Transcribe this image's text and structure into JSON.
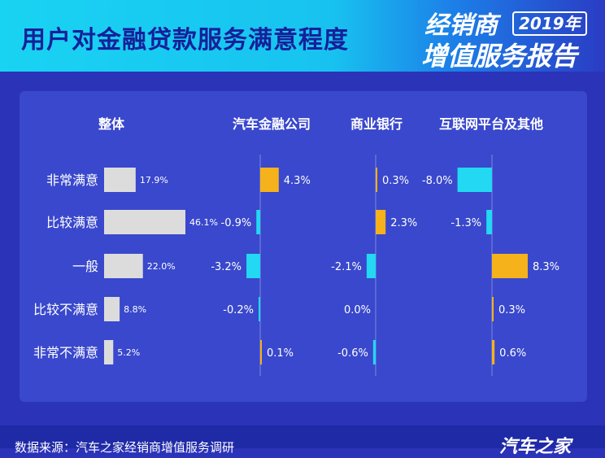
{
  "header": {
    "title": "用户对金融贷款服务满意程度",
    "badge_top": "经销商",
    "badge_year": "2019年",
    "badge_bottom": "增值服务报告"
  },
  "footer": {
    "source": "数据来源：汽车之家经销商增值服务调研",
    "logo": "汽车之家"
  },
  "colors": {
    "gray": "#dcdcdc",
    "orange": "#f5b21a",
    "cyan": "#22d8f2"
  },
  "chart_data": {
    "type": "bar",
    "categories": [
      "非常满意",
      "比较满意",
      "一般",
      "比较不满意",
      "非常不满意"
    ],
    "series": [
      {
        "name": "整体",
        "values": [
          17.9,
          46.1,
          22.0,
          8.8,
          5.2
        ]
      },
      {
        "name": "汽车金融公司",
        "values": [
          4.3,
          -0.9,
          -3.2,
          -0.2,
          0.1
        ]
      },
      {
        "name": "商业银行",
        "values": [
          0.3,
          2.3,
          -2.1,
          0.0,
          -0.6
        ]
      },
      {
        "name": "互联网平台及其他",
        "values": [
          -8.0,
          -1.3,
          8.3,
          0.3,
          0.6
        ]
      }
    ],
    "unit": "%"
  }
}
